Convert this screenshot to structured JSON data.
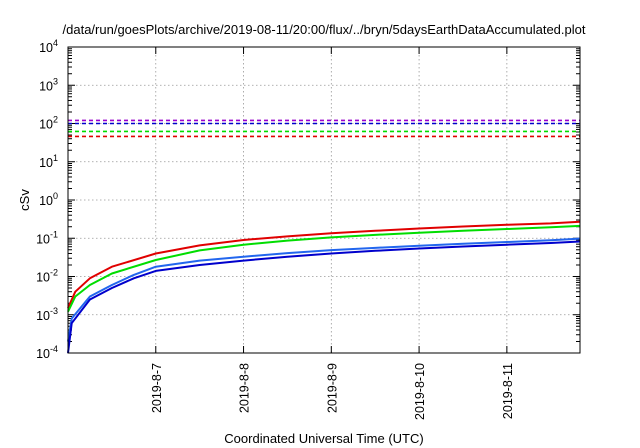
{
  "chart_data": {
    "type": "line",
    "title": "/data/run/goesPlots/archive/2019-08-11/20:00/flux/../bryn/5daysEarthDataAccumulated.plot",
    "xlabel": "Coordinated Universal Time (UTC)",
    "ylabel": "cSv",
    "x_tick_labels": [
      "2019-8-7",
      "2019-8-8",
      "2019-8-9",
      "2019-8-10",
      "2019-8-11"
    ],
    "xlim": [
      "2019-08-06 00:00",
      "2019-08-11 20:00"
    ],
    "yscale": "log",
    "ylim": [
      0.0001,
      10000
    ],
    "y_ticks": [
      {
        "base": "10",
        "exp": "-4"
      },
      {
        "base": "10",
        "exp": "-3"
      },
      {
        "base": "10",
        "exp": "-2"
      },
      {
        "base": "10",
        "exp": "-1"
      },
      {
        "base": "10",
        "exp": "0"
      },
      {
        "base": "10",
        "exp": "1"
      },
      {
        "base": "10",
        "exp": "2"
      },
      {
        "base": "10",
        "exp": "3"
      },
      {
        "base": "10",
        "exp": "4"
      }
    ],
    "grid": "dotted",
    "legend": "none",
    "series": [
      {
        "color": "#e00000",
        "style": "solid",
        "x": [
          "2019-08-06 00:00",
          "2019-08-06 02:00",
          "2019-08-06 06:00",
          "2019-08-06 12:00",
          "2019-08-07 00:00",
          "2019-08-07 12:00",
          "2019-08-08 00:00",
          "2019-08-08 12:00",
          "2019-08-09 00:00",
          "2019-08-09 12:00",
          "2019-08-10 00:00",
          "2019-08-10 12:00",
          "2019-08-11 00:00",
          "2019-08-11 12:00",
          "2019-08-11 20:00"
        ],
        "y": [
          0.0015,
          0.004,
          0.009,
          0.018,
          0.04,
          0.065,
          0.09,
          0.112,
          0.135,
          0.157,
          0.18,
          0.203,
          0.225,
          0.245,
          0.27
        ]
      },
      {
        "color": "#00dd00",
        "style": "solid",
        "x": [
          "2019-08-06 00:00",
          "2019-08-06 02:00",
          "2019-08-06 06:00",
          "2019-08-06 12:00",
          "2019-08-07 00:00",
          "2019-08-07 12:00",
          "2019-08-08 00:00",
          "2019-08-08 12:00",
          "2019-08-09 00:00",
          "2019-08-09 12:00",
          "2019-08-10 00:00",
          "2019-08-10 12:00",
          "2019-08-11 00:00",
          "2019-08-11 12:00",
          "2019-08-11 20:00"
        ],
        "y": [
          0.0012,
          0.003,
          0.006,
          0.012,
          0.027,
          0.048,
          0.068,
          0.087,
          0.105,
          0.122,
          0.14,
          0.158,
          0.175,
          0.193,
          0.21
        ]
      },
      {
        "color": "#2266ee",
        "style": "solid",
        "x": [
          "2019-08-06 00:00",
          "2019-08-06 01:00",
          "2019-08-06 06:00",
          "2019-08-06 12:00",
          "2019-08-06 18:00",
          "2019-08-07 00:00",
          "2019-08-07 12:00",
          "2019-08-08 00:00",
          "2019-08-08 12:00",
          "2019-08-09 00:00",
          "2019-08-09 12:00",
          "2019-08-10 00:00",
          "2019-08-10 12:00",
          "2019-08-11 00:00",
          "2019-08-11 12:00",
          "2019-08-11 20:00"
        ],
        "y": [
          0.0002,
          0.0008,
          0.003,
          0.006,
          0.011,
          0.018,
          0.026,
          0.033,
          0.041,
          0.049,
          0.056,
          0.064,
          0.072,
          0.08,
          0.089,
          0.098
        ]
      },
      {
        "color": "#0000cc",
        "style": "solid",
        "x": [
          "2019-08-06 00:00",
          "2019-08-06 01:00",
          "2019-08-06 06:00",
          "2019-08-06 12:00",
          "2019-08-06 18:00",
          "2019-08-07 00:00",
          "2019-08-07 12:00",
          "2019-08-08 00:00",
          "2019-08-08 12:00",
          "2019-08-09 00:00",
          "2019-08-09 12:00",
          "2019-08-10 00:00",
          "2019-08-10 12:00",
          "2019-08-11 00:00",
          "2019-08-11 12:00",
          "2019-08-11 20:00"
        ],
        "y": [
          0.0001,
          0.0006,
          0.0025,
          0.005,
          0.009,
          0.014,
          0.02,
          0.026,
          0.033,
          0.04,
          0.047,
          0.054,
          0.061,
          0.068,
          0.075,
          0.082
        ]
      }
    ],
    "reference_lines": [
      {
        "color": "#9900cc",
        "style": "dashed",
        "y": 120
      },
      {
        "color": "#0000cc",
        "style": "dashed",
        "y": 100
      },
      {
        "color": "#00dd00",
        "style": "dashed",
        "y": 62
      },
      {
        "color": "#e00000",
        "style": "dashed",
        "y": 46
      }
    ]
  }
}
